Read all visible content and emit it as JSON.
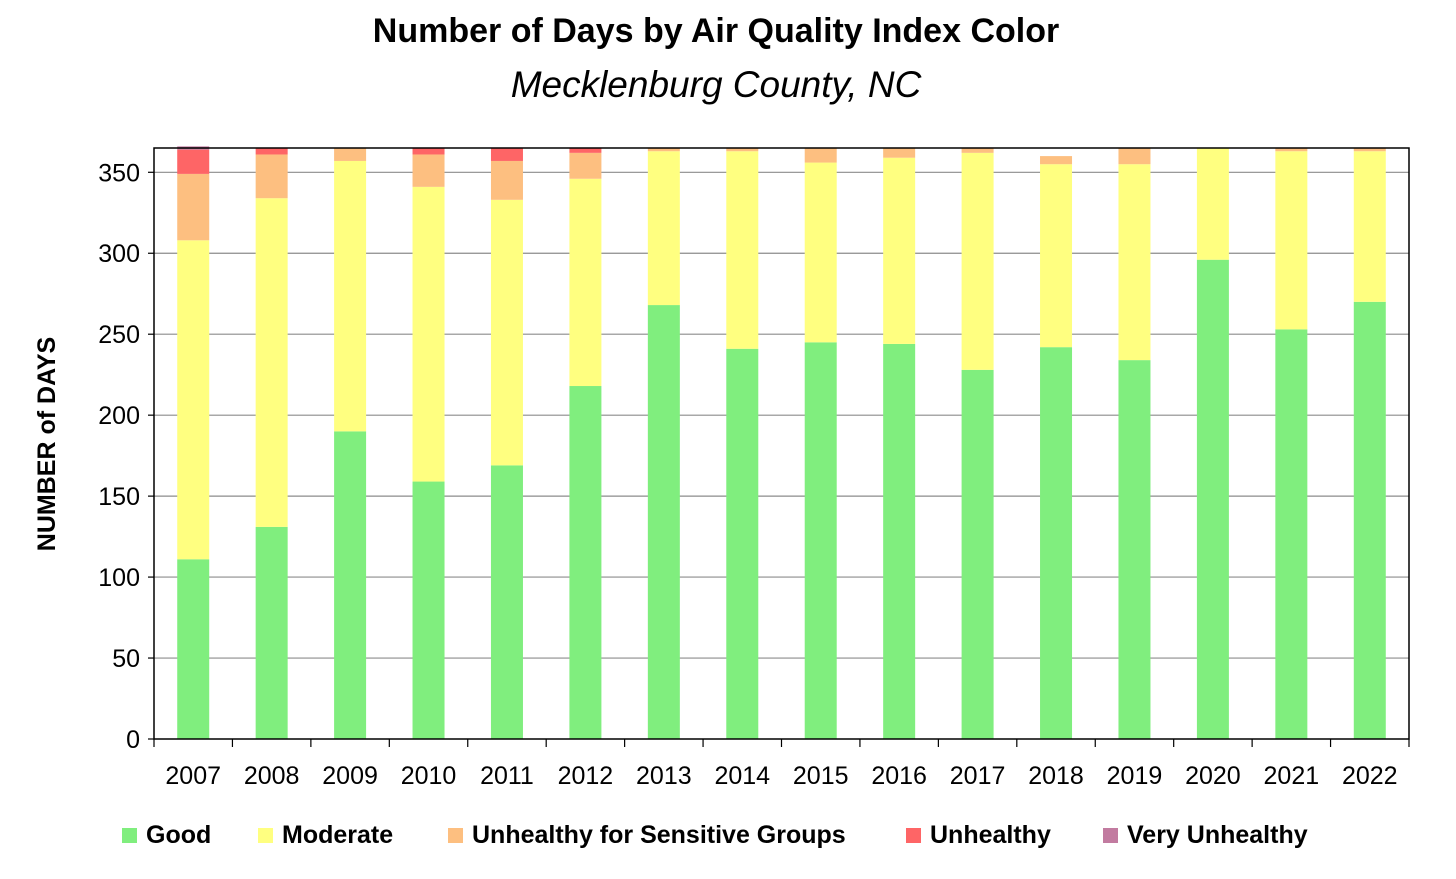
{
  "chart_data": {
    "type": "bar",
    "stacked": true,
    "title": "Number of Days by Air Quality Index Color",
    "subtitle": "Mecklenburg County, NC",
    "ylabel": "NUMBER of DAYS",
    "xlabel": "",
    "ylim": [
      0,
      365
    ],
    "yticks": [
      0,
      50,
      100,
      150,
      200,
      250,
      300,
      350
    ],
    "grid": true,
    "legend": "bottom",
    "categories": [
      "2007",
      "2008",
      "2009",
      "2010",
      "2011",
      "2012",
      "2013",
      "2014",
      "2015",
      "2016",
      "2017",
      "2018",
      "2019",
      "2020",
      "2021",
      "2022"
    ],
    "series": [
      {
        "name": "Good",
        "color": "#80ee7e",
        "values": [
          111,
          131,
          190,
          159,
          169,
          218,
          268,
          241,
          245,
          244,
          228,
          242,
          234,
          296,
          253,
          270
        ]
      },
      {
        "name": "Moderate",
        "color": "#ffff80",
        "values": [
          197,
          203,
          167,
          182,
          164,
          128,
          95,
          122,
          111,
          115,
          134,
          113,
          121,
          69,
          110,
          93
        ]
      },
      {
        "name": "Unhealthy for Sensitive Groups",
        "color": "#fdbf80",
        "values": [
          41,
          27,
          8,
          20,
          24,
          16,
          2,
          2,
          9,
          6,
          3,
          5,
          10,
          0,
          2,
          2
        ]
      },
      {
        "name": "Unhealthy",
        "color": "#fe6566",
        "values": [
          15,
          4,
          0,
          4,
          8,
          3,
          0,
          0,
          0,
          0,
          0,
          0,
          0,
          0,
          0,
          0
        ]
      },
      {
        "name": "Very Unhealthy",
        "color": "#c27ba0",
        "values": [
          2,
          0,
          0,
          0,
          0,
          0,
          0,
          0,
          0,
          0,
          0,
          0,
          0,
          0,
          0,
          0
        ]
      }
    ]
  }
}
